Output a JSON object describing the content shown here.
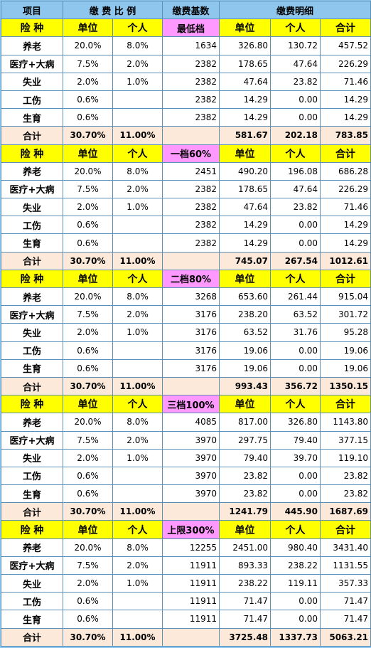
{
  "header": {
    "item": "项目",
    "ratio": "缴 费 比 例",
    "base": "缴费基数",
    "detail": "缴费明细"
  },
  "blocks": [
    {
      "sub": {
        "kind": "险 种",
        "unit": "单位",
        "person": "个人",
        "tier": "最低档",
        "d_unit": "单位",
        "d_person": "个人",
        "d_total": "合计"
      },
      "rows": [
        {
          "name": "养老",
          "u": "20.0%",
          "p": "8.0%",
          "base": "1634",
          "du": "326.80",
          "dp": "130.72",
          "dt": "457.52"
        },
        {
          "name": "医疗+大病",
          "u": "7.5%",
          "p": "2.0%",
          "base": "2382",
          "du": "178.65",
          "dp": "47.64",
          "dt": "226.29"
        },
        {
          "name": "失业",
          "u": "2.0%",
          "p": "1.0%",
          "base": "2382",
          "du": "47.64",
          "dp": "23.82",
          "dt": "71.46"
        },
        {
          "name": "工伤",
          "u": "0.6%",
          "p": "",
          "base": "2382",
          "du": "14.29",
          "dp": "0.00",
          "dt": "14.29"
        },
        {
          "name": "生育",
          "u": "0.6%",
          "p": "",
          "base": "2382",
          "du": "14.29",
          "dp": "0.00",
          "dt": "14.29"
        }
      ],
      "total": {
        "name": "合计",
        "u": "30.70%",
        "p": "11.00%",
        "du": "581.67",
        "dp": "202.18",
        "dt": "783.85"
      }
    },
    {
      "sub": {
        "kind": "险 种",
        "unit": "单位",
        "person": "个人",
        "tier": "一档60%",
        "d_unit": "单位",
        "d_person": "个人",
        "d_total": "合计"
      },
      "rows": [
        {
          "name": "养老",
          "u": "20.0%",
          "p": "8.0%",
          "base": "2451",
          "du": "490.20",
          "dp": "196.08",
          "dt": "686.28"
        },
        {
          "name": "医疗+大病",
          "u": "7.5%",
          "p": "2.0%",
          "base": "2382",
          "du": "178.65",
          "dp": "47.64",
          "dt": "226.29"
        },
        {
          "name": "失业",
          "u": "2.0%",
          "p": "1.0%",
          "base": "2382",
          "du": "47.64",
          "dp": "23.82",
          "dt": "71.46"
        },
        {
          "name": "工伤",
          "u": "0.6%",
          "p": "",
          "base": "2382",
          "du": "14.29",
          "dp": "0.00",
          "dt": "14.29"
        },
        {
          "name": "生育",
          "u": "0.6%",
          "p": "",
          "base": "2382",
          "du": "14.29",
          "dp": "0.00",
          "dt": "14.29"
        }
      ],
      "total": {
        "name": "合计",
        "u": "30.70%",
        "p": "11.00%",
        "du": "745.07",
        "dp": "267.54",
        "dt": "1012.61"
      }
    },
    {
      "sub": {
        "kind": "险 种",
        "unit": "单位",
        "person": "个人",
        "tier": "二档80%",
        "d_unit": "单位",
        "d_person": "个人",
        "d_total": "合计"
      },
      "rows": [
        {
          "name": "养老",
          "u": "20.0%",
          "p": "8.0%",
          "base": "3268",
          "du": "653.60",
          "dp": "261.44",
          "dt": "915.04"
        },
        {
          "name": "医疗+大病",
          "u": "7.5%",
          "p": "2.0%",
          "base": "3176",
          "du": "238.20",
          "dp": "63.52",
          "dt": "301.72"
        },
        {
          "name": "失业",
          "u": "2.0%",
          "p": "1.0%",
          "base": "3176",
          "du": "63.52",
          "dp": "31.76",
          "dt": "95.28"
        },
        {
          "name": "工伤",
          "u": "0.6%",
          "p": "",
          "base": "3176",
          "du": "19.06",
          "dp": "0.00",
          "dt": "19.06"
        },
        {
          "name": "生育",
          "u": "0.6%",
          "p": "",
          "base": "3176",
          "du": "19.06",
          "dp": "0.00",
          "dt": "19.06"
        }
      ],
      "total": {
        "name": "合计",
        "u": "30.70%",
        "p": "11.00%",
        "du": "993.43",
        "dp": "356.72",
        "dt": "1350.15"
      }
    },
    {
      "sub": {
        "kind": "险 种",
        "unit": "单位",
        "person": "个人",
        "tier": "三档100%",
        "d_unit": "单位",
        "d_person": "个人",
        "d_total": "合计"
      },
      "rows": [
        {
          "name": "养老",
          "u": "20.0%",
          "p": "8.0%",
          "base": "4085",
          "du": "817.00",
          "dp": "326.80",
          "dt": "1143.80"
        },
        {
          "name": "医疗+大病",
          "u": "7.5%",
          "p": "2.0%",
          "base": "3970",
          "du": "297.75",
          "dp": "79.40",
          "dt": "377.15"
        },
        {
          "name": "失业",
          "u": "2.0%",
          "p": "1.0%",
          "base": "3970",
          "du": "79.40",
          "dp": "39.70",
          "dt": "119.10"
        },
        {
          "name": "工伤",
          "u": "0.6%",
          "p": "",
          "base": "3970",
          "du": "23.82",
          "dp": "0.00",
          "dt": "23.82"
        },
        {
          "name": "生育",
          "u": "0.6%",
          "p": "",
          "base": "3970",
          "du": "23.82",
          "dp": "0.00",
          "dt": "23.82"
        }
      ],
      "total": {
        "name": "合计",
        "u": "30.70%",
        "p": "11.00%",
        "du": "1241.79",
        "dp": "445.90",
        "dt": "1687.69"
      }
    },
    {
      "sub": {
        "kind": "险 种",
        "unit": "单位",
        "person": "个人",
        "tier": "上限300%",
        "d_unit": "单位",
        "d_person": "个人",
        "d_total": "合计"
      },
      "rows": [
        {
          "name": "养老",
          "u": "20.0%",
          "p": "8.0%",
          "base": "12255",
          "du": "2451.00",
          "dp": "980.40",
          "dt": "3431.40"
        },
        {
          "name": "医疗+大病",
          "u": "7.5%",
          "p": "2.0%",
          "base": "11911",
          "du": "893.33",
          "dp": "238.22",
          "dt": "1131.55"
        },
        {
          "name": "失业",
          "u": "2.0%",
          "p": "1.0%",
          "base": "11911",
          "du": "238.22",
          "dp": "119.11",
          "dt": "357.33"
        },
        {
          "name": "工伤",
          "u": "0.6%",
          "p": "",
          "base": "11911",
          "du": "71.47",
          "dp": "0.00",
          "dt": "71.47"
        },
        {
          "name": "生育",
          "u": "0.6%",
          "p": "",
          "base": "11911",
          "du": "71.47",
          "dp": "0.00",
          "dt": "71.47"
        }
      ],
      "total": {
        "name": "合计",
        "u": "30.70%",
        "p": "11.00%",
        "du": "3725.48",
        "dp": "1337.73",
        "dt": "5063.21"
      }
    }
  ]
}
